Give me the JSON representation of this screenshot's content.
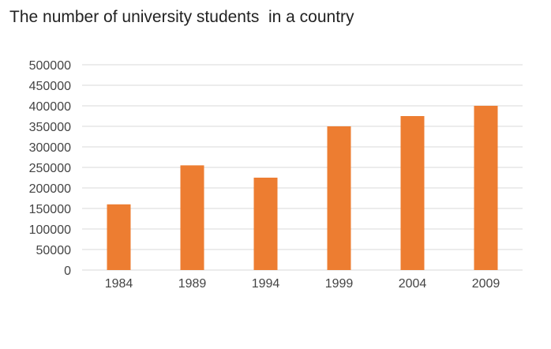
{
  "chart_data": {
    "type": "bar",
    "title": "The number of university students  in a country",
    "categories": [
      "1984",
      "1989",
      "1994",
      "1999",
      "2004",
      "2009"
    ],
    "values": [
      160000,
      255000,
      225000,
      350000,
      375000,
      400000
    ],
    "xlabel": "",
    "ylabel": "",
    "ylim": [
      0,
      500000
    ],
    "yticks": [
      0,
      50000,
      100000,
      150000,
      200000,
      250000,
      300000,
      350000,
      400000,
      450000,
      500000
    ],
    "grid": true,
    "legend": "none",
    "bar_color": "#ED7D31",
    "grid_color": "#D9D9D9"
  }
}
